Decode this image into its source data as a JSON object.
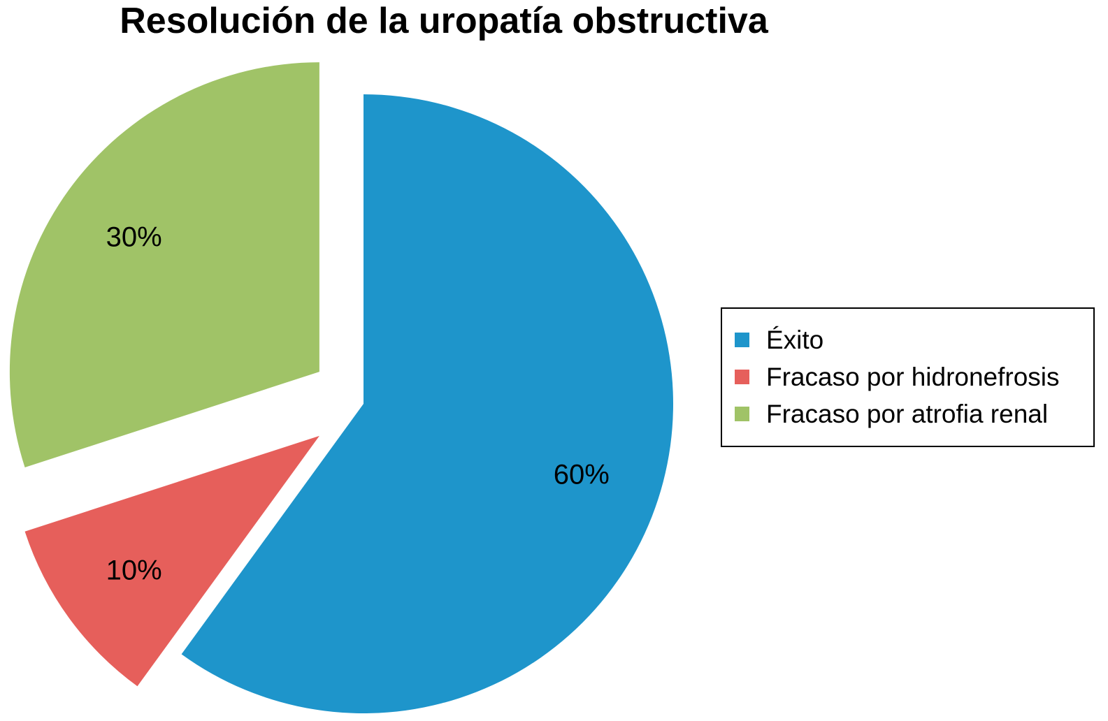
{
  "chart_data": {
    "type": "pie",
    "title": "Resolución de la uropatía obstructiva",
    "slices": [
      {
        "label": "Éxito",
        "value": 60,
        "data_label": "60%",
        "color": "#1e95cb",
        "exploded": false
      },
      {
        "label": "Fracaso por hidronefrosis",
        "value": 10,
        "data_label": "10%",
        "color": "#e65f5b",
        "exploded": true
      },
      {
        "label": "Fracaso por atrofia renal",
        "value": 30,
        "data_label": "30%",
        "color": "#a0c367",
        "exploded": true
      }
    ],
    "start_angle_deg": 0,
    "direction": "clockwise",
    "legend": {
      "position": "right",
      "border": true
    }
  }
}
